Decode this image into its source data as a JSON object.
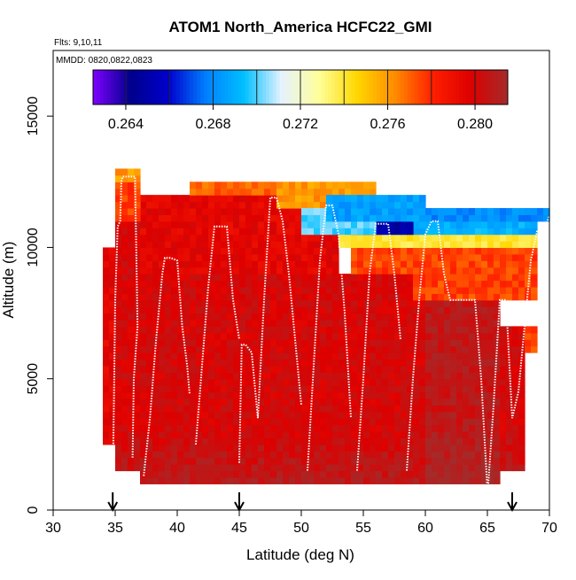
{
  "chart_data": {
    "type": "heatmap",
    "title": "ATOM1 North_America HCFC22_GMI",
    "subtitle_lines": [
      "Flts: 9,10,11",
      "MMDD: 0820,0822,0823"
    ],
    "xlabel": "Latitude (deg N)",
    "ylabel": "Altitude (m)",
    "xlim": [
      30,
      70
    ],
    "ylim": [
      0,
      17500
    ],
    "x_ticks": [
      30,
      35,
      40,
      45,
      50,
      55,
      60,
      65,
      70
    ],
    "y_ticks": [
      0,
      5000,
      10000,
      15000
    ],
    "colorbar": {
      "range": [
        0.2625,
        0.2815
      ],
      "tick_values": [
        0.264,
        0.268,
        0.272,
        0.276,
        0.28
      ],
      "tick_labels": [
        "0.264",
        "0.268",
        "0.272",
        "0.276",
        "0.280"
      ],
      "divider_values": [
        0.264,
        0.266,
        0.268,
        0.27,
        0.272,
        0.274,
        0.276,
        0.278,
        0.28
      ],
      "colors": [
        "#7f00ff",
        "#00008b",
        "#0000cd",
        "#0080ff",
        "#00bfff",
        "#e6f2ff",
        "#ffff99",
        "#ffd700",
        "#ff8c00",
        "#ff2000",
        "#dd0000",
        "#a52a2a"
      ]
    },
    "arrows_latitude": [
      34.8,
      45.0,
      67.0
    ],
    "cell_size": {
      "lat": 0.5,
      "alt_m": 250
    },
    "field_regions": [
      {
        "lat": [
          34.0,
          35.0
        ],
        "alt": [
          2500,
          10000
        ],
        "value": 0.2795
      },
      {
        "lat": [
          35.0,
          37.0
        ],
        "alt": [
          1500,
          11000
        ],
        "value": 0.28
      },
      {
        "lat": [
          37.0,
          60.0
        ],
        "alt": [
          1000,
          9000
        ],
        "value": 0.28
      },
      {
        "lat": [
          60.0,
          66.0
        ],
        "alt": [
          1000,
          8000
        ],
        "value": 0.2807
      },
      {
        "lat": [
          66.0,
          68.0
        ],
        "alt": [
          1500,
          7000
        ],
        "value": 0.28
      },
      {
        "lat": [
          68.0,
          69.0
        ],
        "alt": [
          6000,
          7000
        ],
        "value": 0.2775
      },
      {
        "lat": [
          37.0,
          53.0
        ],
        "alt": [
          9000,
          12000
        ],
        "value": 0.2795
      },
      {
        "lat": [
          35.0,
          37.0
        ],
        "alt": [
          11000,
          12500
        ],
        "value": 0.2775
      },
      {
        "lat": [
          35.0,
          37.0
        ],
        "alt": [
          12500,
          13000
        ],
        "value": 0.276
      },
      {
        "lat": [
          41.0,
          48.0
        ],
        "alt": [
          12000,
          12500
        ],
        "value": 0.277
      },
      {
        "lat": [
          48.0,
          56.0
        ],
        "alt": [
          11500,
          12500
        ],
        "value": 0.276
      },
      {
        "lat": [
          54.0,
          59.0
        ],
        "alt": [
          9000,
          10000
        ],
        "value": 0.2775
      },
      {
        "lat": [
          59.0,
          69.0
        ],
        "alt": [
          8000,
          10000
        ],
        "value": 0.2775
      },
      {
        "lat": [
          53.0,
          69.0
        ],
        "alt": [
          10000,
          10500
        ],
        "value": 0.274
      },
      {
        "lat": [
          56.0,
          69.0
        ],
        "alt": [
          10500,
          11000
        ],
        "value": 0.269
      },
      {
        "lat": [
          54.0,
          59.0
        ],
        "alt": [
          10500,
          11000
        ],
        "value": 0.265
      },
      {
        "lat": [
          50.0,
          56.0
        ],
        "alt": [
          10500,
          11500
        ],
        "value": 0.27
      },
      {
        "lat": [
          52.0,
          60.0
        ],
        "alt": [
          11000,
          12000
        ],
        "value": 0.2685
      },
      {
        "lat": [
          60.0,
          70.0
        ],
        "alt": [
          11000,
          11500
        ],
        "value": 0.268
      }
    ],
    "flight_tracks": [
      {
        "lat": [
          34.8,
          34.9,
          35.0,
          35.2,
          35.4,
          35.5,
          35.6,
          36.0,
          36.3,
          36.6,
          36.8,
          36.5,
          36.4
        ],
        "alt": [
          1000,
          4200,
          8000,
          10800,
          11000,
          12500,
          12700,
          12700,
          12700,
          12700,
          7000,
          5000,
          2000
        ]
      },
      {
        "lat": [
          37.3,
          37.8,
          38.3,
          38.8,
          39.0,
          39.5,
          40.0,
          40.4,
          40.8,
          41.0
        ],
        "alt": [
          1300,
          3500,
          6500,
          9000,
          9600,
          9600,
          9500,
          7000,
          5500,
          4400
        ]
      },
      {
        "lat": [
          41.5,
          42.0,
          42.5,
          43.0,
          43.5,
          44.0,
          44.5,
          45.0
        ],
        "alt": [
          2500,
          5500,
          8500,
          10800,
          10800,
          10800,
          8000,
          6500
        ]
      },
      {
        "lat": [
          45.0,
          45.2,
          45.5,
          46.0,
          46.5,
          47.0,
          47.5,
          48.0,
          48.5,
          49.0,
          50.0
        ],
        "alt": [
          1800,
          6300,
          6300,
          6000,
          3500,
          8000,
          11900,
          11900,
          11000,
          9000,
          4000
        ]
      },
      {
        "lat": [
          50.5,
          51.0,
          51.5,
          52.0,
          52.5,
          53.0,
          53.5,
          54.0
        ],
        "alt": [
          1500,
          5500,
          9500,
          11600,
          11600,
          10500,
          7500,
          3500
        ]
      },
      {
        "lat": [
          54.5,
          55.0,
          55.5,
          56.0,
          56.5,
          57.0,
          57.5,
          58.0
        ],
        "alt": [
          1500,
          5000,
          9000,
          10900,
          10900,
          10900,
          9000,
          6500
        ]
      },
      {
        "lat": [
          58.5,
          59.0,
          59.5,
          60.0,
          60.5,
          61.0,
          61.5,
          62.0,
          63.0,
          64.0,
          64.5,
          65.0
        ],
        "alt": [
          1500,
          5000,
          8000,
          10500,
          11000,
          11000,
          9000,
          8000,
          8000,
          8000,
          5000,
          800
        ]
      },
      {
        "lat": [
          65.0,
          65.5,
          66.0,
          66.5,
          67.0,
          67.5,
          68.0,
          68.5,
          69.0,
          69.5,
          70.0
        ],
        "alt": [
          500,
          4000,
          8000,
          8000,
          3500,
          4500,
          7000,
          9500,
          10600,
          10600,
          11200
        ]
      }
    ]
  }
}
